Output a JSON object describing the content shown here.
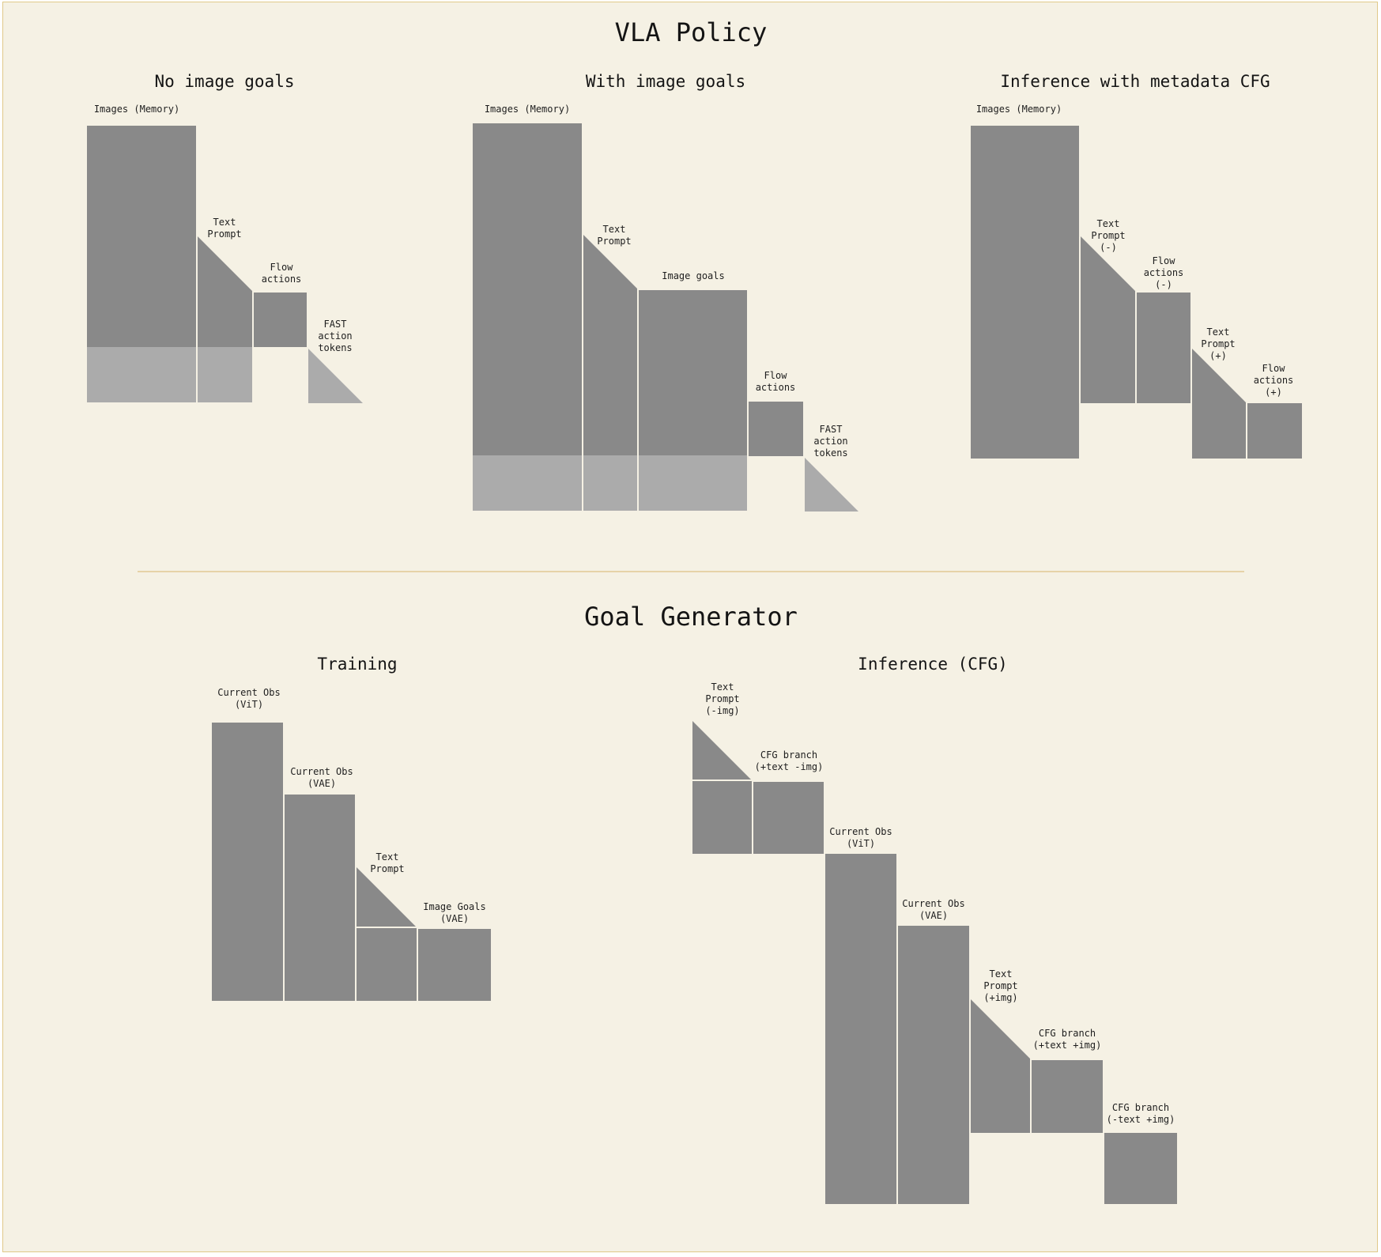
{
  "sections": {
    "vla_title": "VLA Policy",
    "goal_title": "Goal Generator"
  },
  "panels": {
    "no_goals": {
      "title": "No image goals",
      "images_memory": "Images (Memory)",
      "text_prompt": [
        "Text",
        "Prompt"
      ],
      "flow_actions": [
        "Flow",
        "actions"
      ],
      "fast_tokens": [
        "FAST",
        "action",
        "tokens"
      ]
    },
    "with_goals": {
      "title": "With image goals",
      "images_memory": "Images (Memory)",
      "text_prompt": [
        "Text",
        "Prompt"
      ],
      "image_goals": "Image goals",
      "flow_actions": [
        "Flow",
        "actions"
      ],
      "fast_tokens": [
        "FAST",
        "action",
        "tokens"
      ]
    },
    "inference_cfg": {
      "title": "Inference with metadata CFG",
      "images_memory": "Images (Memory)",
      "text_prompt_neg": [
        "Text",
        "Prompt",
        "(-)"
      ],
      "flow_actions_neg": [
        "Flow",
        "actions",
        "(-)"
      ],
      "text_prompt_pos": [
        "Text",
        "Prompt",
        "(+)"
      ],
      "flow_actions_pos": [
        "Flow",
        "actions",
        "(+)"
      ]
    },
    "training": {
      "title": "Training",
      "current_obs_vit": [
        "Current Obs",
        "(ViT)"
      ],
      "current_obs_vae": [
        "Current Obs",
        "(VAE)"
      ],
      "text_prompt": [
        "Text",
        "Prompt"
      ],
      "image_goals_vae": [
        "Image Goals",
        "(VAE)"
      ]
    },
    "gen_inference": {
      "title": "Inference (CFG)",
      "text_prompt_noimg": [
        "Text",
        "Prompt",
        "(-img)"
      ],
      "cfg_text_noimg": [
        "CFG branch",
        "(+text -img)"
      ],
      "current_obs_vit": [
        "Current Obs",
        "(ViT)"
      ],
      "current_obs_vae": [
        "Current Obs",
        "(VAE)"
      ],
      "text_prompt_img": [
        "Text",
        "Prompt",
        "(+img)"
      ],
      "cfg_text_img": [
        "CFG branch",
        "(+text +img)"
      ],
      "cfg_notext_img": [
        "CFG branch",
        "(-text +img)"
      ]
    }
  },
  "colors": {
    "background": "#f5f1e4",
    "border": "#e0c98a",
    "divider": "#e6d3a8",
    "block": "#898989",
    "block_light": "#ababab",
    "text": "#1e1e1e"
  }
}
